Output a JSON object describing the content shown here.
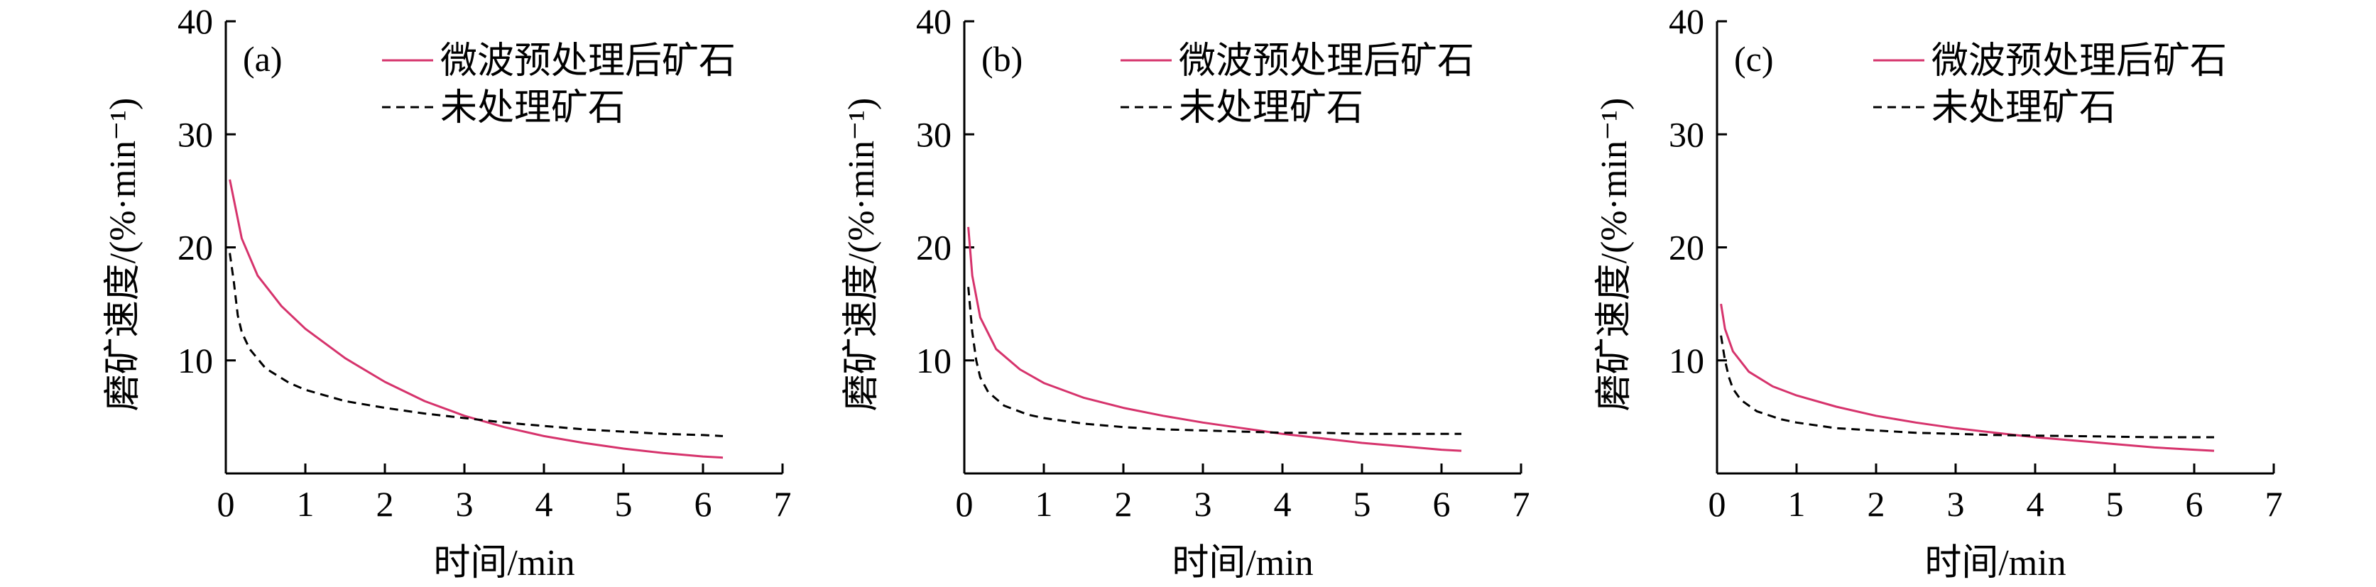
{
  "colors": {
    "microwave_line": "#D6336C",
    "untreated_line": "#000000",
    "axis": "#000000",
    "background": "#FFFFFF"
  },
  "chart_data": [
    {
      "type": "line",
      "panel_label": "(a)",
      "xlabel": "时间/min",
      "ylabel": "磨矿速度/(%·min⁻¹)",
      "xlim": [
        0,
        7
      ],
      "ylim": [
        0,
        40
      ],
      "xticks": [
        0,
        1,
        2,
        3,
        4,
        5,
        6,
        7
      ],
      "yticks": [
        10,
        20,
        30,
        40
      ],
      "legend_position": "top-right",
      "series": [
        {
          "name": "微波预处理后矿石",
          "style": "solid",
          "color": "#D6336C",
          "x": [
            0.05,
            0.2,
            0.4,
            0.7,
            1.0,
            1.5,
            2.0,
            2.5,
            3.0,
            3.5,
            4.0,
            4.5,
            5.0,
            5.5,
            6.0,
            6.25
          ],
          "y": [
            26.0,
            20.8,
            17.5,
            14.8,
            12.8,
            10.2,
            8.1,
            6.4,
            5.1,
            4.1,
            3.3,
            2.7,
            2.2,
            1.8,
            1.5,
            1.4
          ]
        },
        {
          "name": "未处理矿石",
          "style": "dashed",
          "color": "#000000",
          "x": [
            0.05,
            0.1,
            0.15,
            0.2,
            0.3,
            0.5,
            0.8,
            1.0,
            1.5,
            2.0,
            2.5,
            3.0,
            3.5,
            4.0,
            4.5,
            5.0,
            5.5,
            6.0,
            6.25
          ],
          "y": [
            19.5,
            17.0,
            14.0,
            12.5,
            11.0,
            9.3,
            8.0,
            7.4,
            6.4,
            5.8,
            5.3,
            4.9,
            4.5,
            4.2,
            3.9,
            3.7,
            3.5,
            3.4,
            3.3
          ]
        }
      ]
    },
    {
      "type": "line",
      "panel_label": "(b)",
      "xlabel": "时间/min",
      "ylabel": "磨矿速度/(%·min⁻¹)",
      "xlim": [
        0,
        7
      ],
      "ylim": [
        0,
        40
      ],
      "xticks": [
        0,
        1,
        2,
        3,
        4,
        5,
        6,
        7
      ],
      "yticks": [
        10,
        20,
        30,
        40
      ],
      "legend_position": "top-right",
      "series": [
        {
          "name": "微波预处理后矿石",
          "style": "solid",
          "color": "#D6336C",
          "x": [
            0.05,
            0.1,
            0.2,
            0.4,
            0.7,
            1.0,
            1.5,
            2.0,
            2.5,
            3.0,
            3.5,
            4.0,
            4.5,
            5.0,
            5.5,
            6.0,
            6.25
          ],
          "y": [
            21.8,
            17.5,
            13.8,
            11.0,
            9.2,
            8.0,
            6.7,
            5.8,
            5.1,
            4.5,
            4.0,
            3.5,
            3.1,
            2.7,
            2.4,
            2.1,
            2.0
          ]
        },
        {
          "name": "未处理矿石",
          "style": "dashed",
          "color": "#000000",
          "x": [
            0.05,
            0.1,
            0.15,
            0.2,
            0.3,
            0.5,
            0.8,
            1.0,
            1.5,
            2.0,
            2.5,
            3.0,
            3.5,
            4.0,
            4.5,
            5.0,
            5.5,
            6.0,
            6.25
          ],
          "y": [
            16.5,
            12.5,
            10.0,
            8.5,
            7.2,
            6.0,
            5.2,
            4.9,
            4.4,
            4.1,
            3.9,
            3.8,
            3.7,
            3.6,
            3.6,
            3.5,
            3.5,
            3.5,
            3.5
          ]
        }
      ]
    },
    {
      "type": "line",
      "panel_label": "(c)",
      "xlabel": "时间/min",
      "ylabel": "磨矿速度/(%·min⁻¹)",
      "xlim": [
        0,
        7
      ],
      "ylim": [
        0,
        40
      ],
      "xticks": [
        0,
        1,
        2,
        3,
        4,
        5,
        6,
        7
      ],
      "yticks": [
        10,
        20,
        30,
        40
      ],
      "legend_position": "top-right",
      "series": [
        {
          "name": "微波预处理后矿石",
          "style": "solid",
          "color": "#D6336C",
          "x": [
            0.05,
            0.1,
            0.2,
            0.4,
            0.7,
            1.0,
            1.5,
            2.0,
            2.5,
            3.0,
            3.5,
            4.0,
            4.5,
            5.0,
            5.5,
            6.0,
            6.25
          ],
          "y": [
            15.0,
            12.8,
            10.8,
            9.0,
            7.7,
            6.9,
            5.9,
            5.1,
            4.5,
            4.0,
            3.6,
            3.2,
            2.9,
            2.6,
            2.3,
            2.1,
            2.0
          ]
        },
        {
          "name": "未处理矿石",
          "style": "dashed",
          "color": "#000000",
          "x": [
            0.05,
            0.1,
            0.15,
            0.2,
            0.3,
            0.5,
            0.8,
            1.0,
            1.5,
            2.0,
            2.5,
            3.0,
            3.5,
            4.0,
            4.5,
            5.0,
            5.5,
            6.0,
            6.25
          ],
          "y": [
            12.2,
            10.0,
            8.5,
            7.5,
            6.5,
            5.5,
            4.8,
            4.5,
            4.0,
            3.8,
            3.6,
            3.5,
            3.4,
            3.35,
            3.3,
            3.25,
            3.2,
            3.2,
            3.2
          ]
        }
      ]
    }
  ]
}
